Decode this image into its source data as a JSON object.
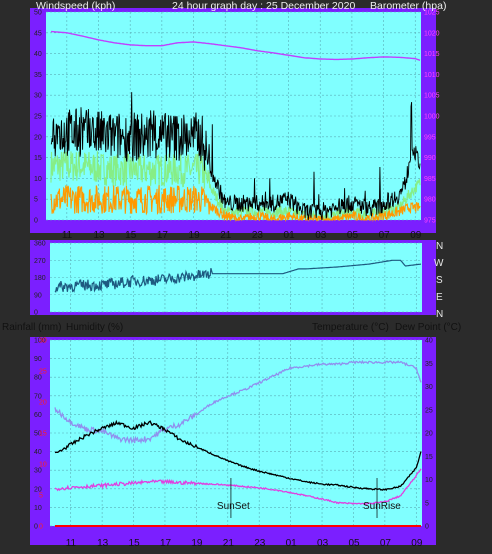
{
  "header": {
    "left": "Windspeed (kph)",
    "center": "24 hour graph day : 25 December 2020",
    "right": "Barometer (hpa)"
  },
  "panel2_header": {
    "left_1": "Rainfall (mm)",
    "left_2": "Humidity (%)",
    "right_1": "Temperature (°C)",
    "right_2": "Dew Point (°C)"
  },
  "compass": [
    "N",
    "W",
    "S",
    "E",
    "N"
  ],
  "colors": {
    "frame": "#7b1fff",
    "plot": "#80ffff",
    "grid": "#5aaeb8",
    "gust": "#000000",
    "average": "#86ee86",
    "speed": "#ff9900",
    "barometer": "#c040ff",
    "direction": "#1d5a80",
    "temperature": "#000000",
    "dewpoint": "#e040e0",
    "humidity": "#9090ee",
    "rain": "#ff0000"
  },
  "chart_data": [
    {
      "type": "line",
      "name": "wind-barometer",
      "x_ticks": [
        "11",
        "13",
        "15",
        "17",
        "19",
        "21",
        "23",
        "01",
        "03",
        "05",
        "07",
        "09"
      ],
      "y_left": {
        "ticks": [
          0,
          5,
          10,
          15,
          20,
          25,
          30,
          35,
          40,
          45,
          50
        ],
        "range": [
          0,
          50
        ]
      },
      "y_right": {
        "ticks": [
          975,
          980,
          985,
          990,
          995,
          1000,
          1005,
          1010,
          1015,
          1020,
          1025
        ],
        "range": [
          975,
          1025
        ]
      },
      "series": [
        {
          "key": "gust",
          "axis": "left",
          "hours": [
            0,
            2,
            4,
            6,
            8,
            9.5,
            10.2,
            11,
            12,
            13,
            14,
            15,
            16,
            17,
            18,
            19,
            20,
            20.6,
            21.5,
            22,
            22.4,
            22.8,
            23.3
          ],
          "values": [
            21,
            21,
            20,
            20,
            20,
            20,
            11,
            4,
            4,
            4,
            4,
            5,
            2,
            2,
            3,
            4,
            3,
            3,
            5,
            6,
            9,
            18,
            13
          ]
        },
        {
          "key": "average",
          "axis": "left",
          "hours": [
            0,
            2,
            4,
            6,
            8,
            9.5,
            10.2,
            11,
            12,
            13,
            14,
            15,
            16,
            17,
            18,
            19,
            20,
            21,
            22,
            22.6,
            23.3
          ],
          "values": [
            13,
            13,
            12,
            12,
            12,
            12,
            7,
            2,
            2,
            2,
            2,
            2,
            1,
            1,
            1,
            2,
            1,
            2,
            3,
            6,
            9
          ]
        },
        {
          "key": "speed",
          "axis": "left",
          "hours": [
            0,
            2,
            4,
            6,
            8,
            9.5,
            10.2,
            11,
            12,
            13,
            14,
            15,
            16,
            17,
            18,
            19,
            20,
            21,
            22,
            22.6,
            23.3
          ],
          "values": [
            5,
            5,
            5,
            5,
            5,
            5,
            3,
            1,
            0,
            1,
            0,
            1,
            0,
            0,
            0,
            1,
            0,
            1,
            2,
            3,
            3
          ]
        },
        {
          "key": "barometer",
          "axis": "right",
          "hours": [
            0,
            1,
            2,
            3,
            4,
            5,
            6,
            7,
            8,
            9,
            10,
            11,
            12,
            13,
            14,
            15,
            16,
            17,
            18,
            19,
            20,
            21,
            22,
            23,
            23.3
          ],
          "values": [
            1020.3,
            1020,
            1019.2,
            1018.3,
            1017.6,
            1017.1,
            1016.9,
            1016.9,
            1017.6,
            1017.8,
            1017.4,
            1016.9,
            1016.4,
            1015.7,
            1015.2,
            1014.6,
            1014,
            1013.7,
            1013.6,
            1013.7,
            1014,
            1014.2,
            1014.1,
            1013.8,
            1013.4
          ]
        }
      ]
    },
    {
      "type": "line",
      "name": "wind-direction",
      "y_ticks": [
        360,
        270,
        180,
        90,
        0
      ],
      "series": [
        {
          "key": "direction",
          "hours": [
            0,
            1,
            2,
            3,
            4,
            5,
            6,
            7,
            8,
            9.6,
            10,
            13,
            14.5,
            15.5,
            16,
            18,
            20,
            21.5,
            22,
            22.3,
            23.3
          ],
          "values": [
            130,
            135,
            140,
            140,
            150,
            160,
            165,
            170,
            180,
            195,
            200,
            200,
            200,
            225,
            225,
            235,
            250,
            270,
            270,
            240,
            250
          ]
        }
      ]
    },
    {
      "type": "line",
      "name": "temperature-humidity",
      "x_ticks": [
        "11",
        "13",
        "15",
        "17",
        "19",
        "21",
        "23",
        "01",
        "03",
        "05",
        "07",
        "09"
      ],
      "y_left": {
        "ticks": [
          0,
          10,
          20,
          30,
          40,
          50,
          60,
          70,
          80,
          90,
          100
        ],
        "range": [
          0,
          100
        ]
      },
      "y_left_rain": {
        "ticks": [
          0,
          5,
          10,
          15,
          20,
          25,
          30
        ],
        "range": [
          0,
          30
        ]
      },
      "y_right": {
        "ticks": [
          0,
          5,
          10,
          15,
          20,
          25,
          30,
          35,
          40
        ],
        "range": [
          0,
          40
        ]
      },
      "series": [
        {
          "key": "humidity",
          "axis": "left",
          "hours": [
            0,
            1,
            2,
            3,
            4,
            5,
            6,
            7,
            8,
            9,
            10,
            11,
            12,
            13,
            14,
            15,
            16,
            17,
            18,
            19,
            20,
            21,
            22,
            23,
            23.3
          ],
          "values": [
            63,
            56,
            52,
            51,
            47,
            46,
            47,
            52,
            55,
            60,
            66,
            70,
            73,
            77,
            81,
            85,
            86,
            87,
            87,
            88,
            88,
            88,
            88,
            85,
            77
          ]
        },
        {
          "key": "temperature",
          "axis": "right",
          "hours": [
            0,
            1,
            2,
            3,
            4,
            5,
            6,
            7,
            8,
            9,
            10,
            11,
            12,
            13,
            14,
            15,
            16,
            17,
            18,
            19,
            20,
            21,
            22,
            23,
            23.3
          ],
          "values": [
            15.5,
            17.5,
            19.5,
            21,
            22.2,
            21,
            22.3,
            20.8,
            18.5,
            17,
            15.5,
            14,
            12.8,
            11.8,
            11,
            10.2,
            9.5,
            9,
            8.8,
            8.3,
            8,
            7.8,
            8.5,
            12.5,
            16
          ]
        },
        {
          "key": "dewpoint",
          "axis": "right",
          "hours": [
            0,
            1,
            2,
            3,
            4,
            5,
            6,
            7,
            8,
            9,
            10,
            11,
            12,
            13,
            14,
            15,
            16,
            17,
            18,
            19,
            20,
            21,
            22,
            23,
            23.3
          ],
          "values": [
            8,
            8.3,
            8.5,
            8.7,
            9,
            9.2,
            9.5,
            9.5,
            9.3,
            9.2,
            9,
            8.8,
            8.5,
            8.2,
            7.8,
            7.2,
            6.5,
            5.8,
            5,
            4.8,
            4.8,
            5.2,
            6.5,
            10.8,
            12.3
          ]
        },
        {
          "key": "rain",
          "axis": "rain",
          "hours": [
            0,
            23.3
          ],
          "values": [
            0,
            0
          ]
        }
      ],
      "annotations": [
        {
          "text": "SunSet",
          "hour": 11.2
        },
        {
          "text": "SunRise",
          "hour": 20.5
        }
      ]
    }
  ]
}
